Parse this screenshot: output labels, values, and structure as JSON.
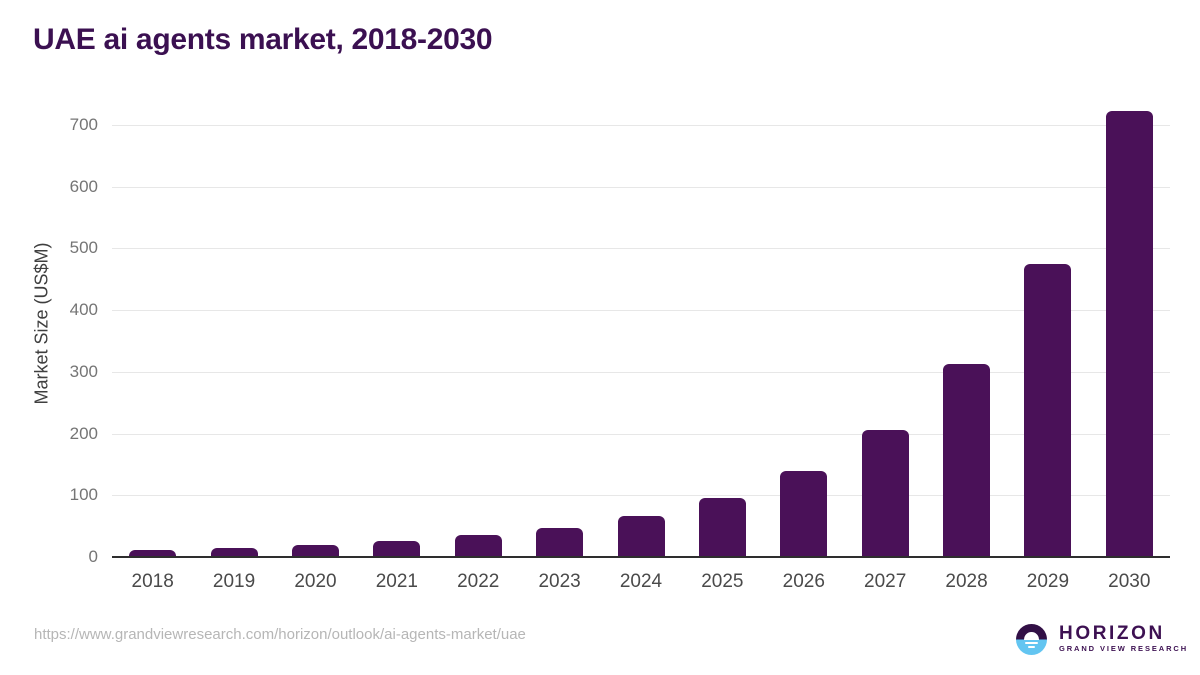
{
  "title": "UAE ai agents market, 2018-2030",
  "chart_data": {
    "type": "bar",
    "title": "UAE ai agents market, 2018-2030",
    "categories": [
      "2018",
      "2019",
      "2020",
      "2021",
      "2022",
      "2023",
      "2024",
      "2025",
      "2026",
      "2027",
      "2028",
      "2029",
      "2030"
    ],
    "values": [
      12,
      15,
      19,
      26,
      35,
      47,
      67,
      96,
      140,
      205,
      313,
      474,
      722
    ],
    "xlabel": "",
    "ylabel": "Market Size (US$M)",
    "ylim": [
      0,
      700
    ],
    "yticks": [
      0,
      100,
      200,
      300,
      400,
      500,
      600,
      700
    ],
    "grid": "horizontal-only",
    "legend": "none",
    "bar_color": "#4a1158"
  },
  "footer": {
    "source_url": "https://www.grandviewresearch.com/horizon/outlook/ai-agents-market/uae"
  },
  "logo": {
    "name": "HORIZON",
    "subtitle": "GRAND VIEW RESEARCH"
  },
  "colors": {
    "title_purple": "#3b1051",
    "bar_purple": "#4a1158",
    "logo_dark_purple": "#321046",
    "logo_blue": "#63c5f1",
    "gridline": "#e7e7e7",
    "axis_line": "#2e2e2e",
    "tick_gray": "#757575",
    "url_gray": "#b6b6b6"
  }
}
